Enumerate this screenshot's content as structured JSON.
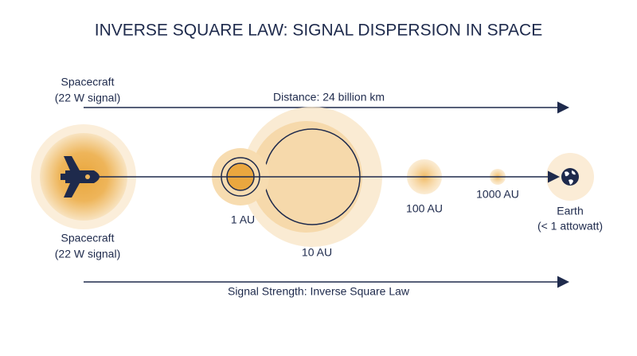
{
  "header": {
    "title": "INVERSE SQUARE LAW: SIGNAL DISPERSION IN SPACE"
  },
  "source": {
    "top_name": "Spacecraft",
    "top_detail": "(22 W signal)",
    "bottom_name": "Spacecraft",
    "bottom_detail": "(22 W signal)"
  },
  "distance_arrow": {
    "label": "Distance: 24 billion km"
  },
  "markers": [
    {
      "label": "1 AU"
    },
    {
      "label": "10 AU"
    },
    {
      "label": "100 AU"
    },
    {
      "label": "1000 AU"
    }
  ],
  "destination": {
    "name": "Earth",
    "detail": "(< 1 attowatt)"
  },
  "strength_arrow": {
    "label": "Signal Strength: Inverse Square Law"
  }
}
